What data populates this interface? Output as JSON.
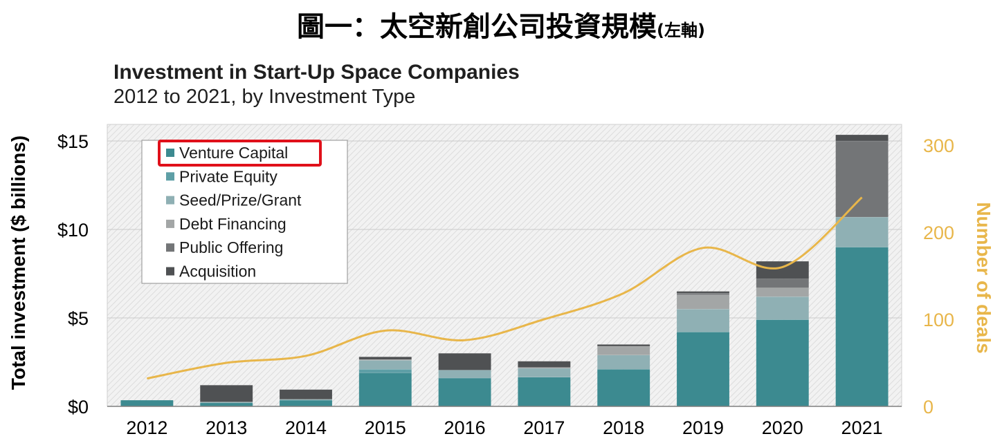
{
  "page": {
    "title_main": "圖一：太空新創公司投資規模",
    "title_sub": "(左軸)"
  },
  "chart_data": {
    "type": "bar",
    "title": "Investment in Start-Up Space Companies",
    "subtitle": "2012 to 2021, by Investment Type",
    "ylabel": "Total investment ($ billions)",
    "y2label": "Number of deals",
    "ylim": [
      0,
      15.5
    ],
    "y2lim": [
      0,
      310
    ],
    "yticks": [
      0,
      5,
      10,
      15
    ],
    "ytick_labels": [
      "$0",
      "$5",
      "$10",
      "$15"
    ],
    "y2ticks": [
      0,
      100,
      200,
      300
    ],
    "y2tick_labels": [
      "0",
      "100",
      "200",
      "300"
    ],
    "categories": [
      "2012",
      "2013",
      "2014",
      "2015",
      "2016",
      "2017",
      "2018",
      "2019",
      "2020",
      "2021"
    ],
    "stacked": true,
    "legend_position": "top-left",
    "highlighted_legend_item": "Venture Capital",
    "series": [
      {
        "name": "Venture Capital",
        "color": "#3c8a90",
        "values": [
          0.35,
          0.2,
          0.35,
          1.9,
          1.6,
          1.65,
          2.1,
          4.2,
          4.9,
          9.0
        ]
      },
      {
        "name": "Private Equity",
        "color": "#5e9fa6",
        "values": [
          0,
          0,
          0,
          0.2,
          0,
          0,
          0,
          0,
          0,
          0
        ]
      },
      {
        "name": "Seed/Prize/Grant",
        "color": "#8fb0b4",
        "values": [
          0,
          0.05,
          0.05,
          0.5,
          0.45,
          0.5,
          0.8,
          1.3,
          1.3,
          1.7
        ]
      },
      {
        "name": "Debt Financing",
        "color": "#a3a6a6",
        "values": [
          0,
          0,
          0,
          0.05,
          0,
          0.05,
          0.5,
          0.8,
          0.5,
          0
        ]
      },
      {
        "name": "Public Offering",
        "color": "#737577",
        "values": [
          0,
          0,
          0,
          0,
          0,
          0,
          0,
          0.1,
          0.5,
          4.3
        ]
      },
      {
        "name": "Acquisition",
        "color": "#4f5153",
        "values": [
          0,
          0.95,
          0.55,
          0.15,
          0.95,
          0.35,
          0.1,
          0.1,
          1.0,
          0.35
        ]
      }
    ],
    "line_series": {
      "name": "Number of deals",
      "axis": "right",
      "color": "#e8b64a",
      "values": [
        32,
        50,
        58,
        87,
        76,
        100,
        130,
        182,
        160,
        240
      ]
    }
  }
}
